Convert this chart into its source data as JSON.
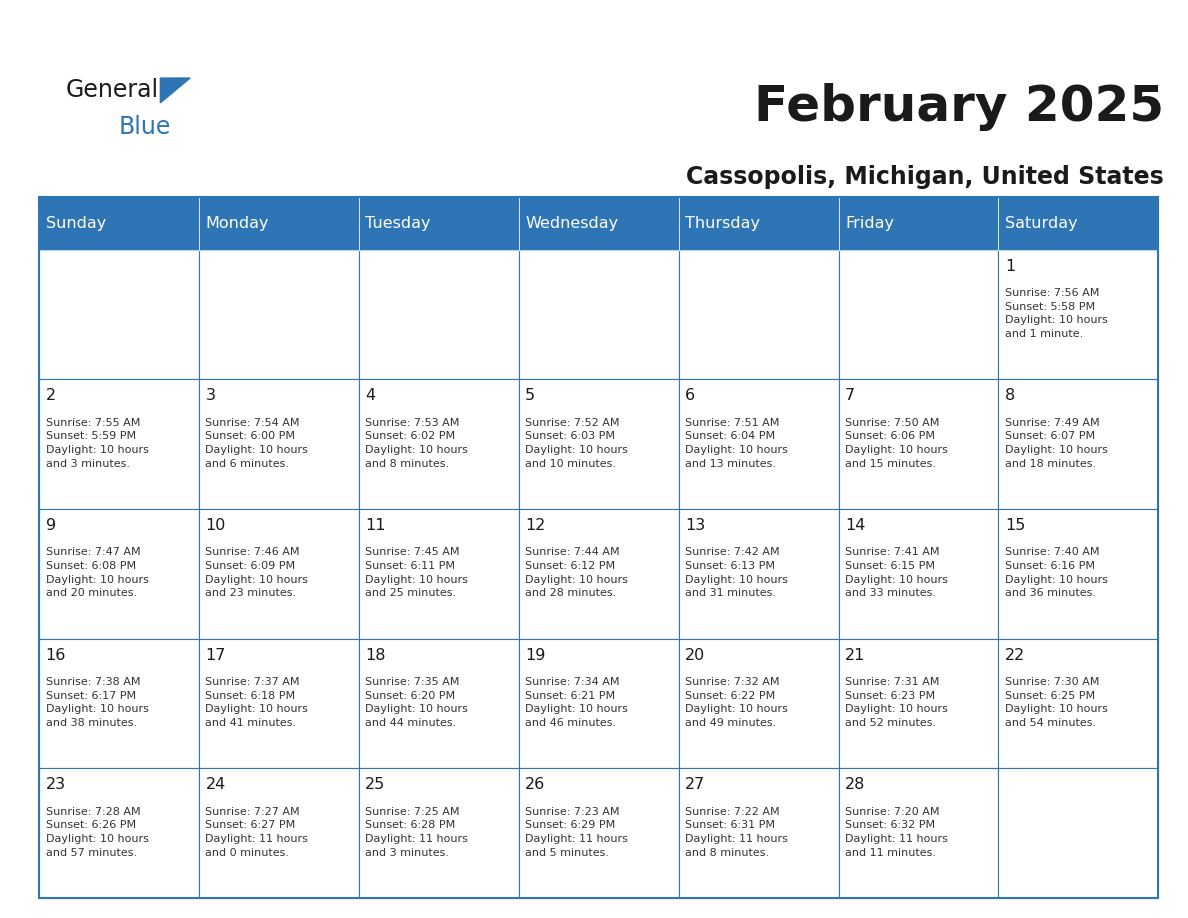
{
  "title": "February 2025",
  "subtitle": "Cassopolis, Michigan, United States",
  "header_color": "#2E75B6",
  "header_text_color": "#FFFFFF",
  "cell_bg_color": "#FFFFFF",
  "border_color": "#2E75B6",
  "title_color": "#1A1A1A",
  "subtitle_color": "#1A1A1A",
  "text_color": "#333333",
  "day_headers": [
    "Sunday",
    "Monday",
    "Tuesday",
    "Wednesday",
    "Thursday",
    "Friday",
    "Saturday"
  ],
  "weeks": [
    [
      {
        "day": "",
        "info": ""
      },
      {
        "day": "",
        "info": ""
      },
      {
        "day": "",
        "info": ""
      },
      {
        "day": "",
        "info": ""
      },
      {
        "day": "",
        "info": ""
      },
      {
        "day": "",
        "info": ""
      },
      {
        "day": "1",
        "info": "Sunrise: 7:56 AM\nSunset: 5:58 PM\nDaylight: 10 hours\nand 1 minute."
      }
    ],
    [
      {
        "day": "2",
        "info": "Sunrise: 7:55 AM\nSunset: 5:59 PM\nDaylight: 10 hours\nand 3 minutes."
      },
      {
        "day": "3",
        "info": "Sunrise: 7:54 AM\nSunset: 6:00 PM\nDaylight: 10 hours\nand 6 minutes."
      },
      {
        "day": "4",
        "info": "Sunrise: 7:53 AM\nSunset: 6:02 PM\nDaylight: 10 hours\nand 8 minutes."
      },
      {
        "day": "5",
        "info": "Sunrise: 7:52 AM\nSunset: 6:03 PM\nDaylight: 10 hours\nand 10 minutes."
      },
      {
        "day": "6",
        "info": "Sunrise: 7:51 AM\nSunset: 6:04 PM\nDaylight: 10 hours\nand 13 minutes."
      },
      {
        "day": "7",
        "info": "Sunrise: 7:50 AM\nSunset: 6:06 PM\nDaylight: 10 hours\nand 15 minutes."
      },
      {
        "day": "8",
        "info": "Sunrise: 7:49 AM\nSunset: 6:07 PM\nDaylight: 10 hours\nand 18 minutes."
      }
    ],
    [
      {
        "day": "9",
        "info": "Sunrise: 7:47 AM\nSunset: 6:08 PM\nDaylight: 10 hours\nand 20 minutes."
      },
      {
        "day": "10",
        "info": "Sunrise: 7:46 AM\nSunset: 6:09 PM\nDaylight: 10 hours\nand 23 minutes."
      },
      {
        "day": "11",
        "info": "Sunrise: 7:45 AM\nSunset: 6:11 PM\nDaylight: 10 hours\nand 25 minutes."
      },
      {
        "day": "12",
        "info": "Sunrise: 7:44 AM\nSunset: 6:12 PM\nDaylight: 10 hours\nand 28 minutes."
      },
      {
        "day": "13",
        "info": "Sunrise: 7:42 AM\nSunset: 6:13 PM\nDaylight: 10 hours\nand 31 minutes."
      },
      {
        "day": "14",
        "info": "Sunrise: 7:41 AM\nSunset: 6:15 PM\nDaylight: 10 hours\nand 33 minutes."
      },
      {
        "day": "15",
        "info": "Sunrise: 7:40 AM\nSunset: 6:16 PM\nDaylight: 10 hours\nand 36 minutes."
      }
    ],
    [
      {
        "day": "16",
        "info": "Sunrise: 7:38 AM\nSunset: 6:17 PM\nDaylight: 10 hours\nand 38 minutes."
      },
      {
        "day": "17",
        "info": "Sunrise: 7:37 AM\nSunset: 6:18 PM\nDaylight: 10 hours\nand 41 minutes."
      },
      {
        "day": "18",
        "info": "Sunrise: 7:35 AM\nSunset: 6:20 PM\nDaylight: 10 hours\nand 44 minutes."
      },
      {
        "day": "19",
        "info": "Sunrise: 7:34 AM\nSunset: 6:21 PM\nDaylight: 10 hours\nand 46 minutes."
      },
      {
        "day": "20",
        "info": "Sunrise: 7:32 AM\nSunset: 6:22 PM\nDaylight: 10 hours\nand 49 minutes."
      },
      {
        "day": "21",
        "info": "Sunrise: 7:31 AM\nSunset: 6:23 PM\nDaylight: 10 hours\nand 52 minutes."
      },
      {
        "day": "22",
        "info": "Sunrise: 7:30 AM\nSunset: 6:25 PM\nDaylight: 10 hours\nand 54 minutes."
      }
    ],
    [
      {
        "day": "23",
        "info": "Sunrise: 7:28 AM\nSunset: 6:26 PM\nDaylight: 10 hours\nand 57 minutes."
      },
      {
        "day": "24",
        "info": "Sunrise: 7:27 AM\nSunset: 6:27 PM\nDaylight: 11 hours\nand 0 minutes."
      },
      {
        "day": "25",
        "info": "Sunrise: 7:25 AM\nSunset: 6:28 PM\nDaylight: 11 hours\nand 3 minutes."
      },
      {
        "day": "26",
        "info": "Sunrise: 7:23 AM\nSunset: 6:29 PM\nDaylight: 11 hours\nand 5 minutes."
      },
      {
        "day": "27",
        "info": "Sunrise: 7:22 AM\nSunset: 6:31 PM\nDaylight: 11 hours\nand 8 minutes."
      },
      {
        "day": "28",
        "info": "Sunrise: 7:20 AM\nSunset: 6:32 PM\nDaylight: 11 hours\nand 11 minutes."
      },
      {
        "day": "",
        "info": ""
      }
    ]
  ],
  "fig_width": 11.88,
  "fig_height": 9.18,
  "dpi": 100
}
